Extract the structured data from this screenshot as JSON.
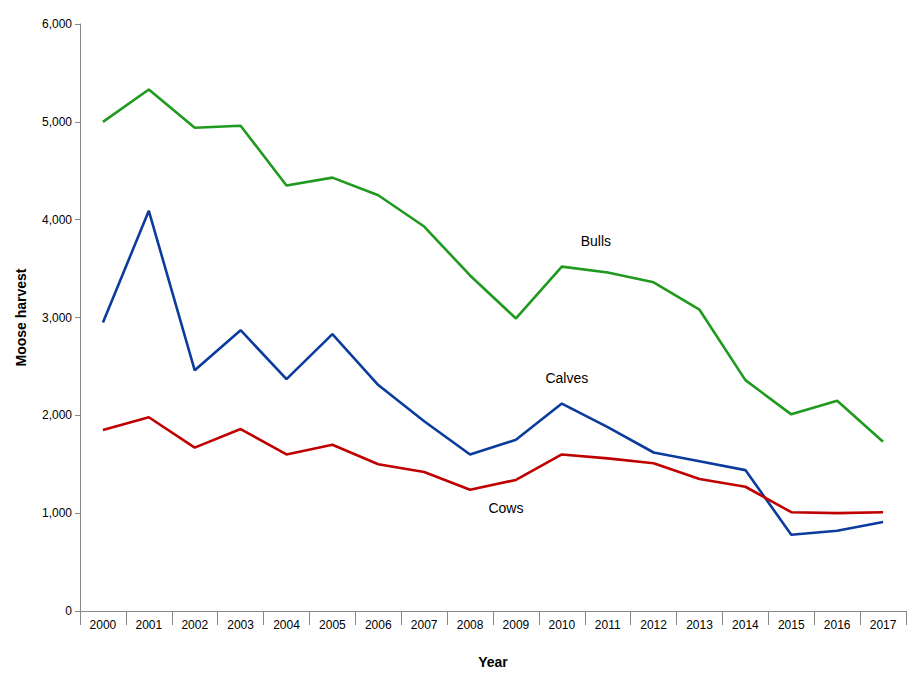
{
  "chart_data": {
    "type": "line",
    "x_label": "Year",
    "y_label": "Moose harvest",
    "categories": [
      "2000",
      "2001",
      "2002",
      "2003",
      "2004",
      "2005",
      "2006",
      "2007",
      "2008",
      "2009",
      "2010",
      "2011",
      "2012",
      "2013",
      "2014",
      "2015",
      "2016",
      "2017"
    ],
    "series": [
      {
        "name": "Bulls",
        "color": "#1f9a1f",
        "values": [
          5000,
          5330,
          4940,
          4960,
          4350,
          4430,
          4250,
          3930,
          3430,
          2990,
          3520,
          3460,
          3360,
          3080,
          2360,
          2010,
          2150,
          1730
        ]
      },
      {
        "name": "Calves",
        "color": "#0b3b9c",
        "values": [
          2950,
          4090,
          2460,
          2870,
          2370,
          2830,
          2310,
          1940,
          1600,
          1750,
          2120,
          1880,
          1620,
          1530,
          1440,
          780,
          820,
          910
        ]
      },
      {
        "name": "Cows",
        "color": "#c00000",
        "values": [
          1850,
          1980,
          1670,
          1860,
          1600,
          1700,
          1500,
          1420,
          1240,
          1340,
          1600,
          1560,
          1510,
          1350,
          1270,
          1010,
          1000,
          1010
        ]
      }
    ],
    "ylim": [
      0,
      6000
    ],
    "yticks": [
      0,
      1000,
      2000,
      3000,
      4000,
      5000,
      6000
    ],
    "grid": false
  }
}
